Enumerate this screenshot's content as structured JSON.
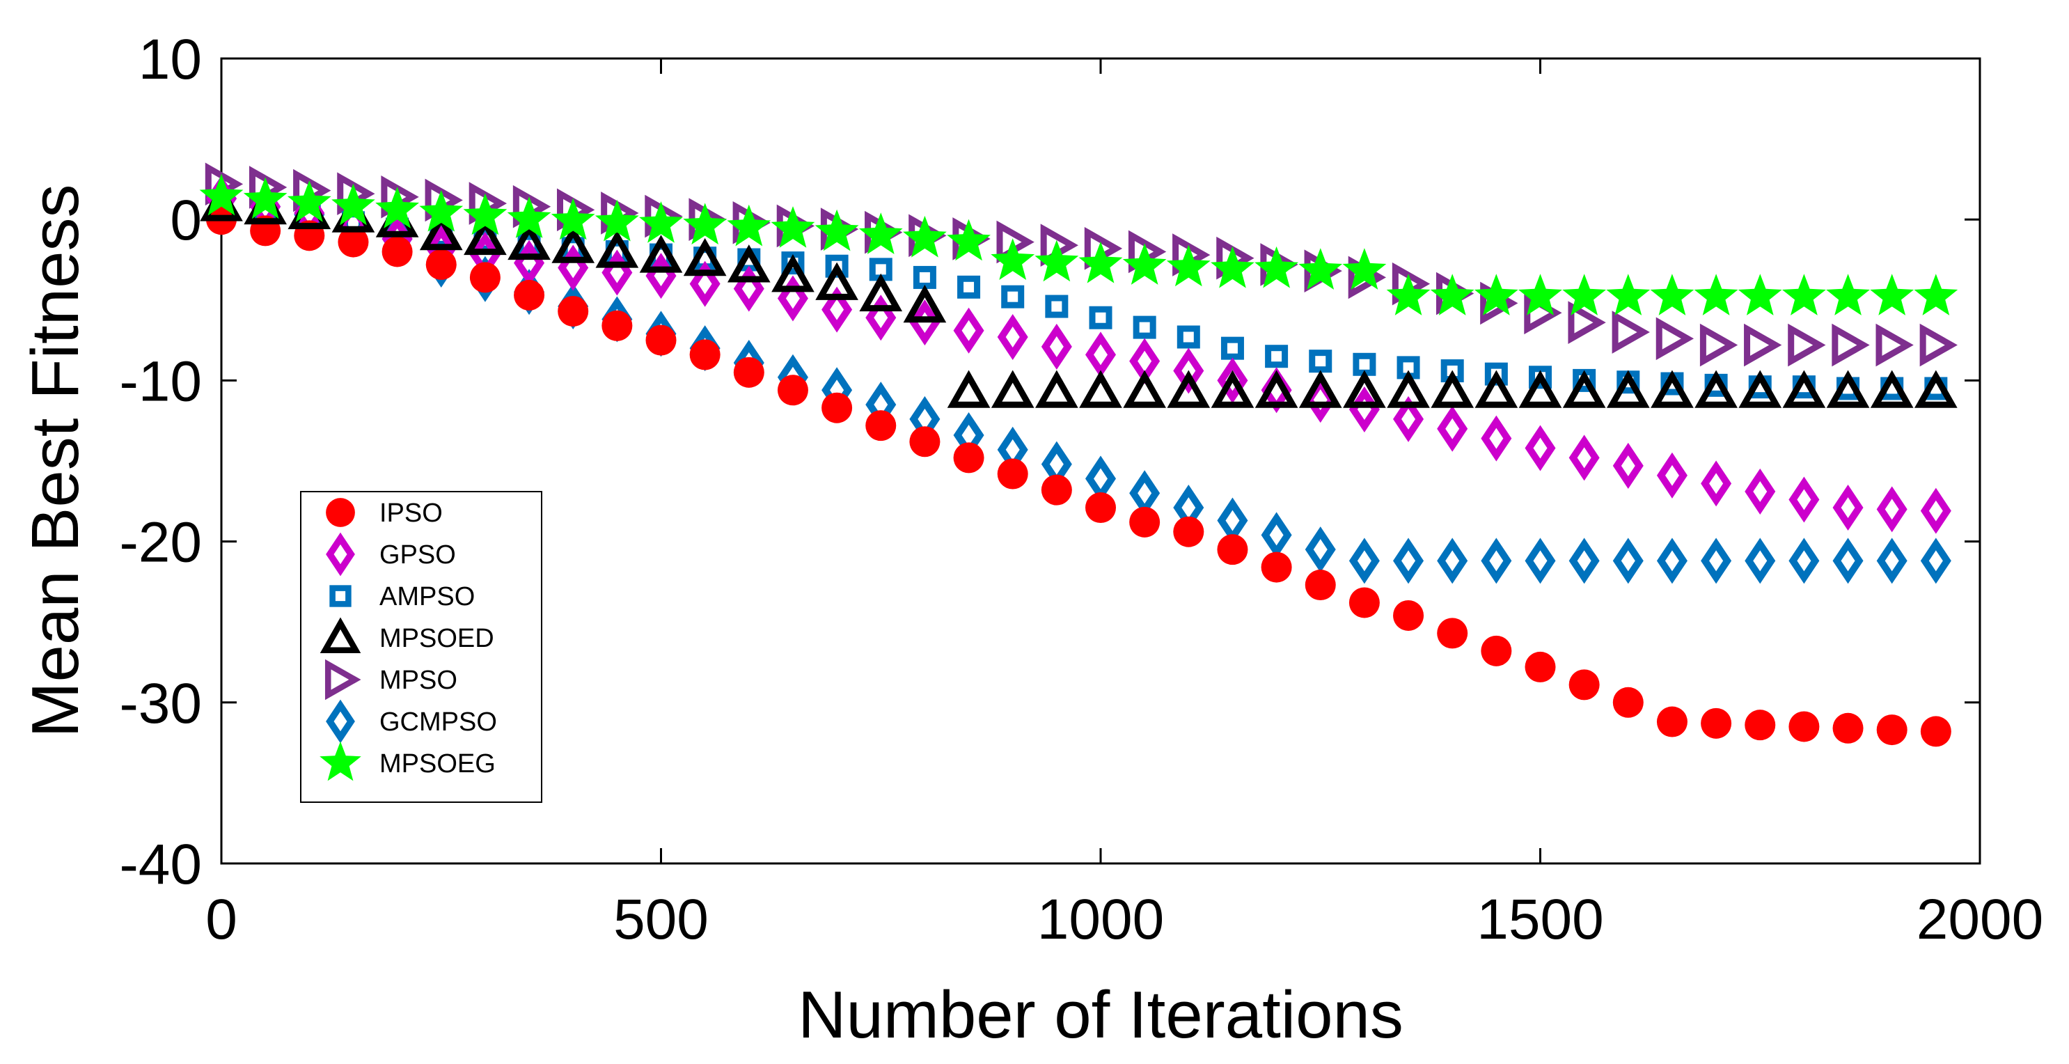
{
  "chart_data": {
    "type": "scatter",
    "title": "",
    "xlabel": "Number of Iterations",
    "ylabel": "Mean Best Fitness",
    "xlim": [
      0,
      2000
    ],
    "ylim": [
      -40,
      10
    ],
    "xticks": [
      0,
      500,
      1000,
      1500,
      2000
    ],
    "yticks": [
      10,
      0,
      -10,
      -20,
      -30,
      -40
    ],
    "legend_position": "middle-left",
    "x": [
      0,
      50,
      100,
      150,
      200,
      250,
      300,
      350,
      400,
      450,
      500,
      550,
      600,
      650,
      700,
      750,
      800,
      850,
      900,
      950,
      1000,
      1050,
      1100,
      1150,
      1200,
      1250,
      1300,
      1350,
      1400,
      1450,
      1500,
      1550,
      1600,
      1650,
      1700,
      1750,
      1800,
      1850,
      1900,
      1950
    ],
    "series": [
      {
        "name": "IPSO",
        "marker": "circle",
        "color": "#ff0000",
        "values": [
          0,
          -0.7,
          -1.0,
          -1.4,
          -2.0,
          -2.8,
          -3.6,
          -4.7,
          -5.7,
          -6.6,
          -7.5,
          -8.4,
          -9.5,
          -10.6,
          -11.7,
          -12.8,
          -13.8,
          -14.8,
          -15.8,
          -16.8,
          -17.9,
          -18.8,
          -19.4,
          -20.5,
          -21.6,
          -22.7,
          -23.8,
          -24.6,
          -25.7,
          -26.8,
          -27.8,
          -28.9,
          -30.0,
          -31.2,
          -31.3,
          -31.4,
          -31.5,
          -31.6,
          -31.7,
          -31.8
        ]
      },
      {
        "name": "GPSO",
        "marker": "diamond",
        "color": "#cc00cc",
        "values": [
          1.3,
          0.8,
          0.4,
          -0.3,
          -1.2,
          -1.8,
          -2.2,
          -2.7,
          -3.0,
          -3.3,
          -3.5,
          -4.0,
          -4.3,
          -4.9,
          -5.6,
          -6.1,
          -6.4,
          -6.9,
          -7.3,
          -7.9,
          -8.4,
          -8.8,
          -9.4,
          -10.0,
          -10.6,
          -11.2,
          -11.8,
          -12.4,
          -13.0,
          -13.6,
          -14.2,
          -14.8,
          -15.3,
          -15.9,
          -16.4,
          -16.9,
          -17.4,
          -17.9,
          -18.0,
          -18.1
        ]
      },
      {
        "name": "AMPSO",
        "marker": "square",
        "color": "#0072bd",
        "values": [
          0.8,
          0.5,
          0.2,
          -0.2,
          -0.6,
          -1.0,
          -1.3,
          -1.6,
          -1.8,
          -2.0,
          -2.2,
          -2.4,
          -2.5,
          -2.7,
          -2.9,
          -3.1,
          -3.6,
          -4.2,
          -4.8,
          -5.4,
          -6.1,
          -6.7,
          -7.3,
          -8.0,
          -8.5,
          -8.8,
          -9.0,
          -9.2,
          -9.4,
          -9.6,
          -9.8,
          -10.0,
          -10.1,
          -10.2,
          -10.3,
          -10.4,
          -10.4,
          -10.5,
          -10.5,
          -10.5
        ]
      },
      {
        "name": "MPSOED",
        "marker": "triangle-up",
        "color": "#000000",
        "values": [
          0.9,
          0.7,
          0.4,
          0.2,
          -0.1,
          -0.9,
          -1.2,
          -1.5,
          -1.7,
          -2.0,
          -2.3,
          -2.5,
          -2.9,
          -3.5,
          -4.0,
          -4.7,
          -5.4,
          -10.7,
          -10.7,
          -10.7,
          -10.7,
          -10.7,
          -10.7,
          -10.7,
          -10.7,
          -10.7,
          -10.7,
          -10.7,
          -10.7,
          -10.7,
          -10.7,
          -10.7,
          -10.7,
          -10.7,
          -10.7,
          -10.7,
          -10.7,
          -10.7,
          -10.7,
          -10.7
        ]
      },
      {
        "name": "MPSO",
        "marker": "triangle-right",
        "color": "#7e2f8e",
        "values": [
          2.2,
          2.0,
          1.8,
          1.6,
          1.4,
          1.2,
          1.0,
          0.8,
          0.6,
          0.4,
          0.2,
          0.0,
          -0.2,
          -0.4,
          -0.6,
          -0.8,
          -1.0,
          -1.2,
          -1.4,
          -1.6,
          -1.8,
          -2.0,
          -2.2,
          -2.4,
          -2.8,
          -3.2,
          -3.6,
          -4.0,
          -4.6,
          -5.2,
          -5.8,
          -6.4,
          -7.0,
          -7.4,
          -7.8,
          -7.8,
          -7.8,
          -7.8,
          -7.8,
          -7.8
        ]
      },
      {
        "name": "GCMPSO",
        "marker": "diamond",
        "color": "#0072bd",
        "values": [
          1.3,
          0.8,
          0.3,
          -0.2,
          -1.2,
          -2.8,
          -3.7,
          -4.5,
          -5.4,
          -6.2,
          -7.1,
          -8.0,
          -8.9,
          -9.8,
          -10.6,
          -11.5,
          -12.4,
          -13.4,
          -14.3,
          -15.2,
          -16.1,
          -17.0,
          -17.9,
          -18.7,
          -19.6,
          -20.5,
          -21.2,
          -21.2,
          -21.2,
          -21.2,
          -21.2,
          -21.2,
          -21.2,
          -21.2,
          -21.2,
          -21.2,
          -21.2,
          -21.2,
          -21.2,
          -21.2
        ]
      },
      {
        "name": "MPSOEG",
        "marker": "star",
        "color": "#00ff00",
        "values": [
          1.4,
          1.2,
          1.0,
          0.8,
          0.6,
          0.4,
          0.2,
          0.0,
          -0.1,
          -0.2,
          -0.3,
          -0.4,
          -0.5,
          -0.6,
          -0.8,
          -1.0,
          -1.2,
          -1.4,
          -2.6,
          -2.7,
          -2.8,
          -2.9,
          -3.0,
          -3.1,
          -3.1,
          -3.2,
          -3.2,
          -4.8,
          -4.8,
          -4.8,
          -4.8,
          -4.8,
          -4.8,
          -4.8,
          -4.8,
          -4.8,
          -4.8,
          -4.8,
          -4.8,
          -4.8
        ]
      }
    ]
  }
}
